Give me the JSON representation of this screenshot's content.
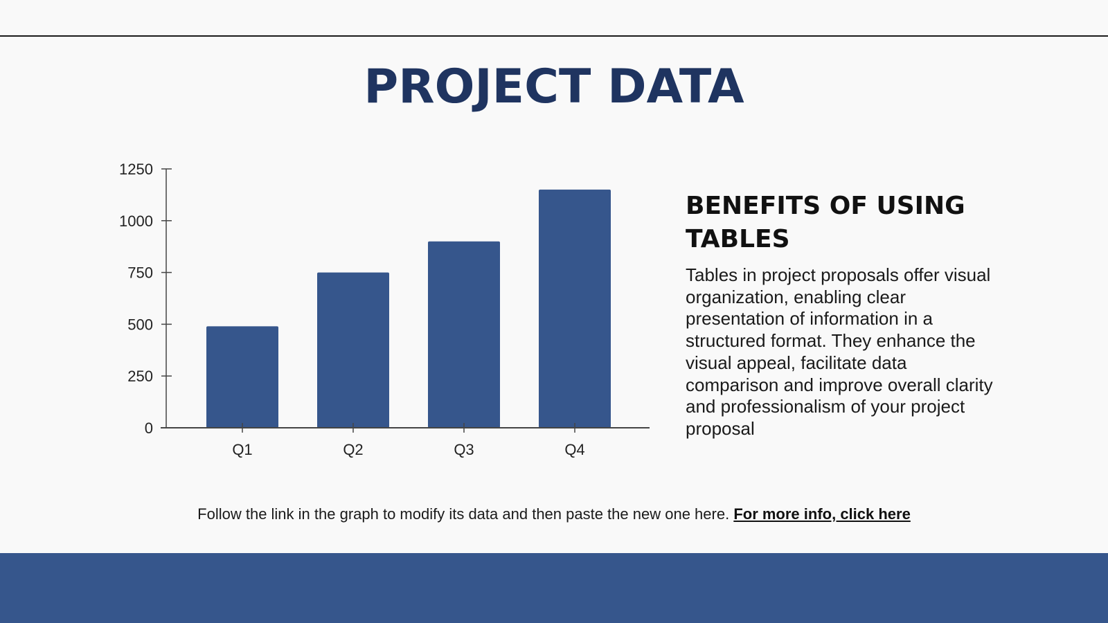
{
  "page": {
    "title": "PROJECT DATA",
    "colors": {
      "title": "#1f3460",
      "bar": "#36568c",
      "footer_band": "#36568c",
      "background": "#f9f9f9"
    }
  },
  "side": {
    "heading": "BENEFITS OF USING TABLES",
    "body": "Tables in project proposals offer visual organization, enabling clear presentation of information in a structured format. They enhance the visual appeal, facilitate data comparison and improve overall clarity and professionalism of your project proposal"
  },
  "footnote": {
    "text": "Follow the link in the graph to modify its data and then paste the new one here. ",
    "link_label": "For more info, click here"
  },
  "chart_data": {
    "type": "bar",
    "title": "",
    "xlabel": "",
    "ylabel": "",
    "categories": [
      "Q1",
      "Q2",
      "Q3",
      "Q4"
    ],
    "values": [
      490,
      750,
      900,
      1150
    ],
    "ylim": [
      0,
      1250
    ],
    "yticks": [
      0,
      250,
      500,
      750,
      1000,
      1250
    ],
    "grid": false,
    "legend": "none",
    "bar_color": "#36568c"
  }
}
